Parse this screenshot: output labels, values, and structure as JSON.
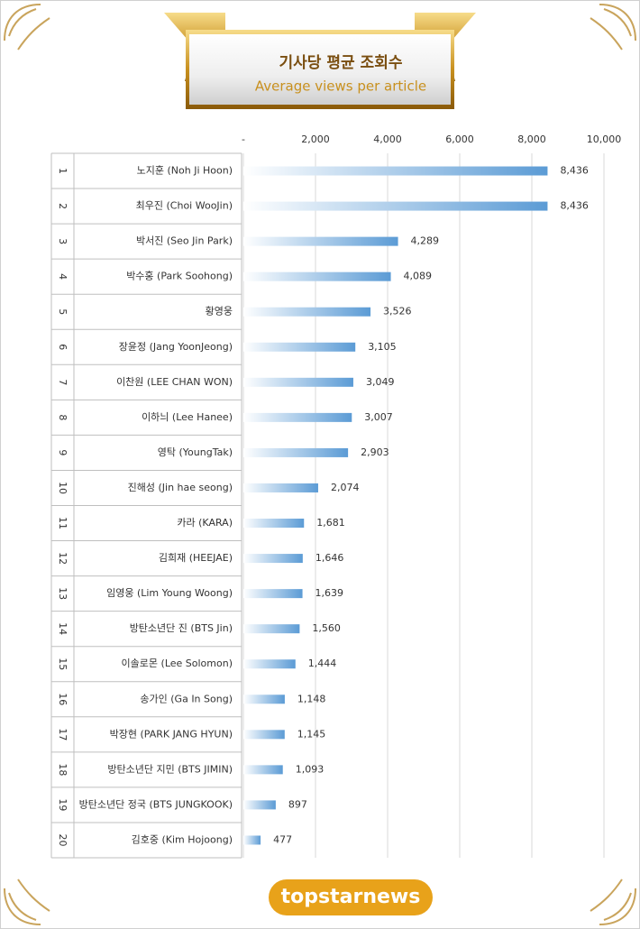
{
  "chart_data": {
    "type": "hbar",
    "title": "기사당 평균 조회수",
    "subtitle": "Average views per article",
    "ranks": [
      "1",
      "2",
      "3",
      "4",
      "5",
      "6",
      "7",
      "8",
      "9",
      "10",
      "11",
      "12",
      "13",
      "14",
      "15",
      "16",
      "17",
      "18",
      "19",
      "20"
    ],
    "categories": [
      "노지훈 (Noh Ji Hoon)",
      "최우진 (Choi WooJin)",
      "박서진 (Seo Jin Park)",
      "박수홍 (Park Soohong)",
      "황영웅",
      "장윤정 (Jang YoonJeong)",
      "이찬원 (LEE CHAN WON)",
      "이하늬 (Lee Hanee)",
      "영탁 (YoungTak)",
      "진해성 (Jin hae seong)",
      "카라 (KARA)",
      "김희재 (HEEJAE)",
      "임영웅 (Lim Young Woong)",
      "방탄소년단 진 (BTS Jin)",
      "이솔로몬 (Lee Solomon)",
      "송가인 (Ga In Song)",
      "박장현 (PARK JANG HYUN)",
      "방탄소년단 지민 (BTS JIMIN)",
      "방탄소년단 정국 (BTS JUNGKOOK)",
      "김호중 (Kim Hojoong)"
    ],
    "values": [
      8436,
      8436,
      4289,
      4089,
      3526,
      3105,
      3049,
      3007,
      2903,
      2074,
      1681,
      1646,
      1639,
      1560,
      1444,
      1148,
      1145,
      1093,
      897,
      477
    ],
    "value_labels": [
      "8,436",
      "8,436",
      "4,289",
      "4,089",
      "3,526",
      "3,105",
      "3,049",
      "3,007",
      "2,903",
      "2,074",
      "1,681",
      "1,646",
      "1,639",
      "1,560",
      "1,444",
      "1,148",
      "1,145",
      "1,093",
      "897",
      "477"
    ],
    "color": "#5b9bd5",
    "xlim": [
      0,
      10000
    ],
    "xticks": [
      {
        "value": 0,
        "label": "-"
      },
      {
        "value": 2000,
        "label": "2,000"
      },
      {
        "value": 4000,
        "label": "4,000"
      },
      {
        "value": 6000,
        "label": "6,000"
      },
      {
        "value": 8000,
        "label": "8,000"
      },
      {
        "value": 10000,
        "label": "10,000"
      }
    ],
    "grid": true
  },
  "logo": "topstarnews"
}
